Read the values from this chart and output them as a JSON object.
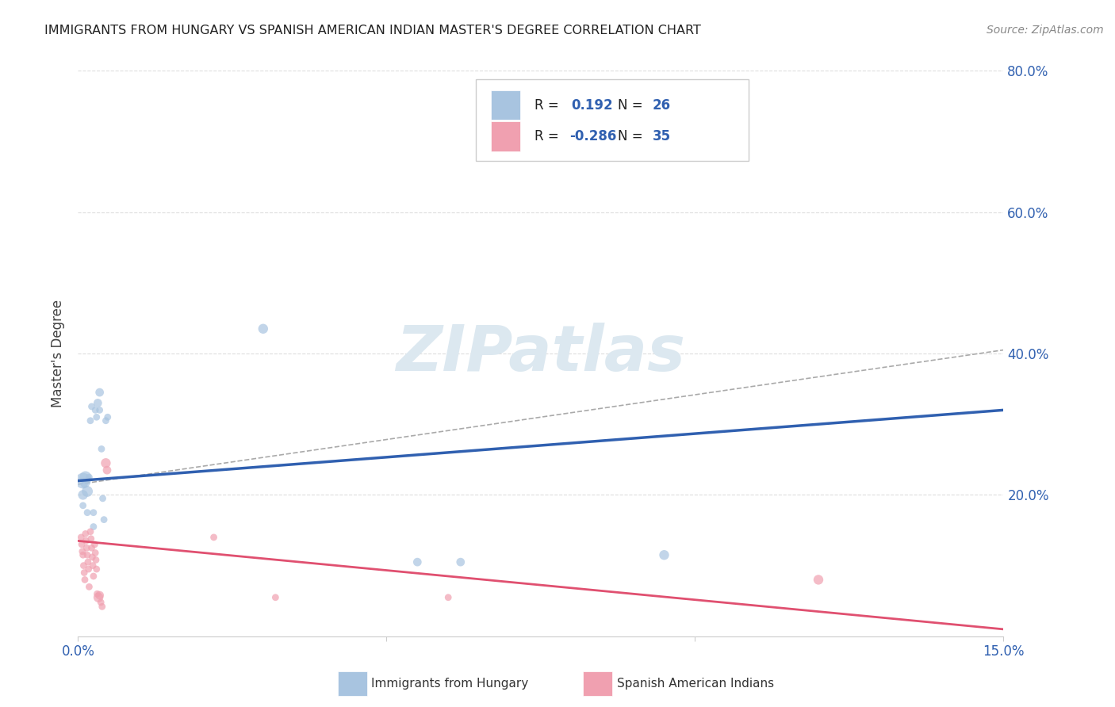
{
  "title": "IMMIGRANTS FROM HUNGARY VS SPANISH AMERICAN INDIAN MASTER'S DEGREE CORRELATION CHART",
  "source": "Source: ZipAtlas.com",
  "ylabel": "Master's Degree",
  "legend_label1": "Immigrants from Hungary",
  "legend_label2": "Spanish American Indians",
  "blue_color": "#a8c4e0",
  "pink_color": "#f0a0b0",
  "blue_line_color": "#3060b0",
  "pink_line_color": "#e05070",
  "dashed_color": "#aaaaaa",
  "blue_scatter": {
    "x": [
      0.0008,
      0.0008,
      0.0008,
      0.001,
      0.0012,
      0.0015,
      0.0015,
      0.0018,
      0.002,
      0.0022,
      0.0025,
      0.0025,
      0.0028,
      0.003,
      0.0032,
      0.0035,
      0.0035,
      0.0038,
      0.004,
      0.0042,
      0.0045,
      0.0048,
      0.03,
      0.055,
      0.062,
      0.095
    ],
    "y": [
      0.22,
      0.2,
      0.185,
      0.215,
      0.225,
      0.175,
      0.205,
      0.225,
      0.305,
      0.325,
      0.155,
      0.175,
      0.32,
      0.31,
      0.33,
      0.345,
      0.32,
      0.265,
      0.195,
      0.165,
      0.305,
      0.31,
      0.435,
      0.105,
      0.105,
      0.115
    ],
    "sizes": [
      200,
      80,
      40,
      40,
      120,
      40,
      100,
      40,
      40,
      40,
      40,
      40,
      40,
      40,
      60,
      60,
      40,
      40,
      40,
      40,
      40,
      40,
      80,
      60,
      60,
      80
    ]
  },
  "pink_scatter": {
    "x": [
      0.0005,
      0.0006,
      0.0007,
      0.0008,
      0.0009,
      0.001,
      0.0011,
      0.0012,
      0.0013,
      0.0014,
      0.0015,
      0.0016,
      0.0017,
      0.0018,
      0.002,
      0.0021,
      0.0022,
      0.0023,
      0.0024,
      0.0025,
      0.0027,
      0.0028,
      0.0029,
      0.003,
      0.0031,
      0.0033,
      0.0035,
      0.0037,
      0.0039,
      0.0045,
      0.0047,
      0.022,
      0.032,
      0.06,
      0.12
    ],
    "y": [
      0.14,
      0.13,
      0.12,
      0.115,
      0.1,
      0.09,
      0.08,
      0.145,
      0.135,
      0.125,
      0.115,
      0.105,
      0.095,
      0.07,
      0.148,
      0.138,
      0.125,
      0.112,
      0.1,
      0.085,
      0.13,
      0.118,
      0.108,
      0.095,
      0.06,
      0.055,
      0.058,
      0.048,
      0.042,
      0.245,
      0.235,
      0.14,
      0.055,
      0.055,
      0.08
    ],
    "sizes": [
      40,
      40,
      40,
      40,
      40,
      40,
      40,
      40,
      40,
      40,
      40,
      40,
      40,
      40,
      40,
      40,
      40,
      40,
      40,
      40,
      40,
      40,
      40,
      40,
      40,
      80,
      60,
      40,
      40,
      80,
      60,
      40,
      40,
      40,
      80
    ]
  },
  "blue_trendline": {
    "x": [
      0.0,
      0.15
    ],
    "y": [
      0.22,
      0.32
    ]
  },
  "pink_trendline": {
    "x": [
      0.0,
      0.15
    ],
    "y": [
      0.135,
      0.01
    ]
  },
  "dashed_line": {
    "x": [
      0.0,
      0.15
    ],
    "y": [
      0.215,
      0.405
    ]
  },
  "xlim": [
    0,
    0.15
  ],
  "ylim": [
    0,
    0.8
  ],
  "xticks": [
    0.0,
    0.05,
    0.1,
    0.15
  ],
  "xticklabels_show": [
    "0.0%",
    "",
    "",
    "15.0%"
  ],
  "yticks_right": [
    0.2,
    0.4,
    0.6,
    0.8
  ],
  "yticklabels_right": [
    "20.0%",
    "40.0%",
    "60.0%",
    "80.0%"
  ],
  "background_color": "#ffffff",
  "grid_color": "#dddddd",
  "watermark": "ZIPatlas",
  "watermark_color": "#dce8f0"
}
